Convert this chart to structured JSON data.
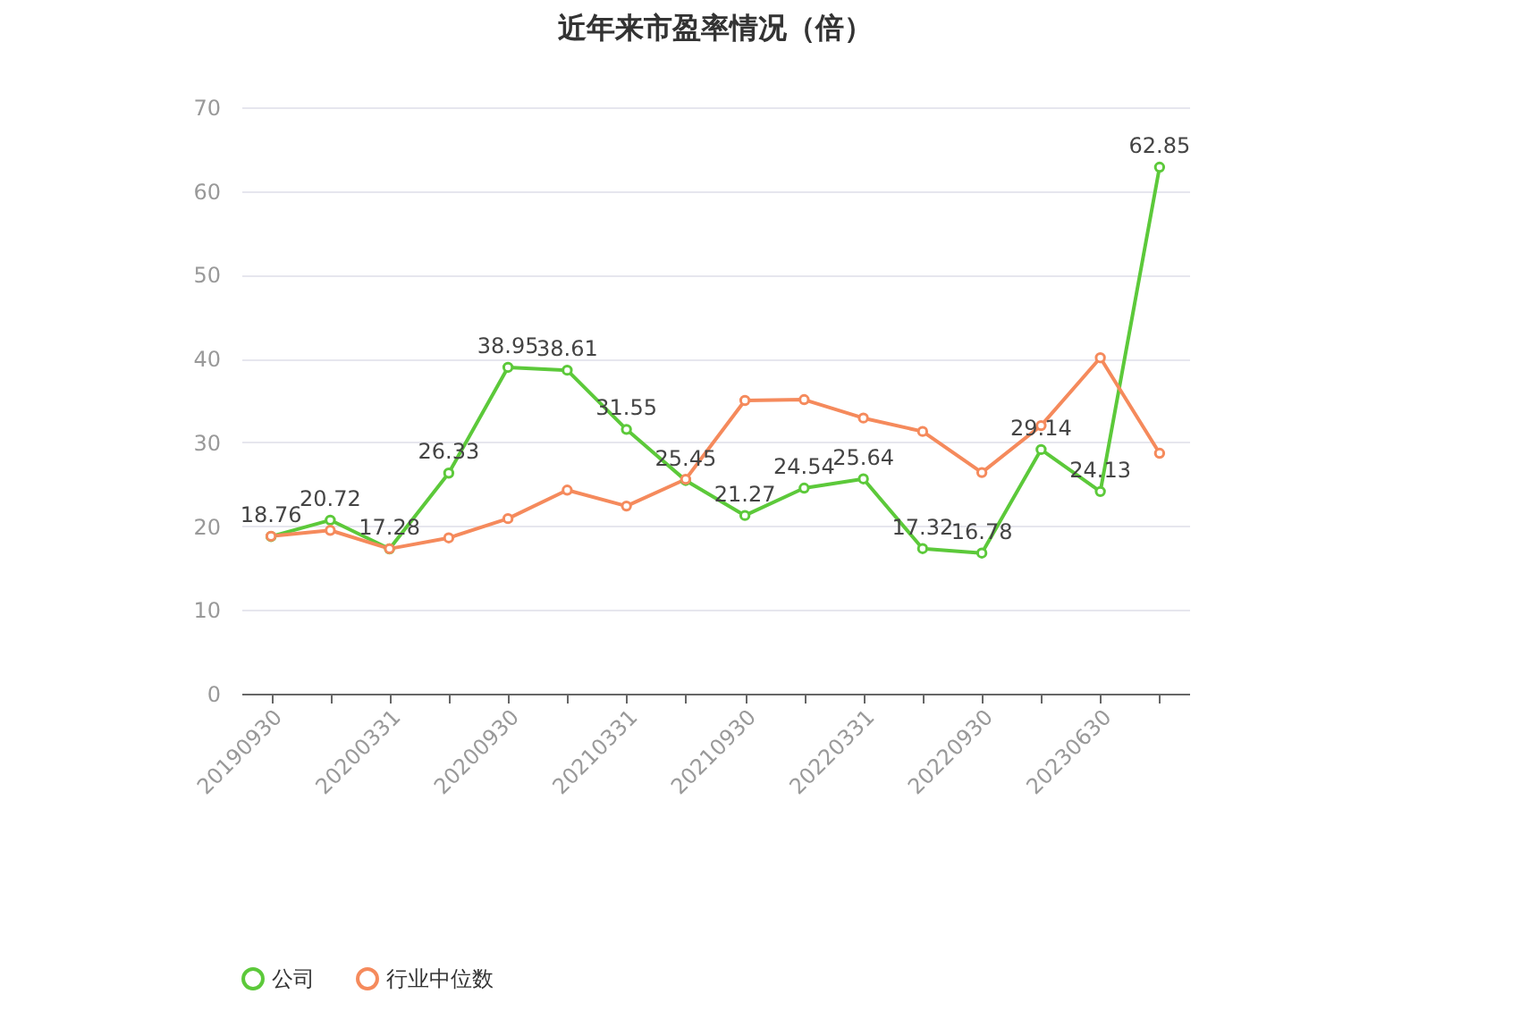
{
  "chart_data": {
    "type": "line",
    "title": "近年来市盈率情况（倍）",
    "categories": [
      "20190930",
      null,
      "20200331",
      null,
      "20200930",
      null,
      "20210331",
      null,
      "20210930",
      null,
      "20220331",
      null,
      "20220930",
      null,
      "20230630",
      null
    ],
    "series": [
      {
        "name": "公司",
        "color": "#5cc93a",
        "values": [
          18.76,
          20.72,
          17.28,
          26.33,
          38.95,
          38.61,
          31.55,
          25.45,
          21.27,
          24.54,
          25.64,
          17.32,
          16.78,
          29.14,
          24.13,
          62.85
        ],
        "value_labels": [
          "18.76",
          "20.72",
          "17.28",
          "26.33",
          "38.95",
          "38.61",
          "31.55",
          "25.45",
          "21.27",
          "24.54",
          "25.64",
          "17.32",
          "16.78",
          "29.14",
          "24.13",
          "62.85"
        ]
      },
      {
        "name": "行业中位数",
        "color": "#f58a5c",
        "values": [
          18.8,
          19.5,
          17.3,
          18.6,
          20.9,
          24.3,
          22.4,
          25.6,
          35.0,
          35.1,
          32.9,
          31.3,
          26.4,
          32.0,
          40.1,
          28.7
        ]
      }
    ],
    "ylim": [
      0,
      70
    ],
    "yticks": [
      0,
      10,
      20,
      30,
      40,
      50,
      60,
      70
    ],
    "grid": "y",
    "legend": "bottom",
    "marker": "circle"
  }
}
